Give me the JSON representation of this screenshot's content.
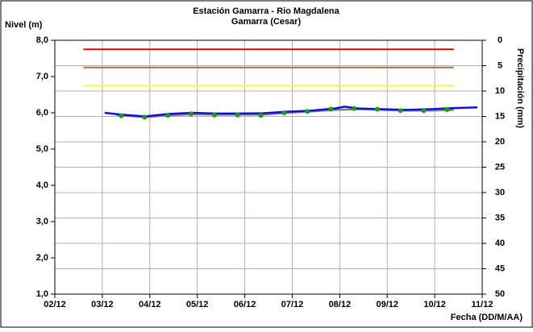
{
  "chart_data": {
    "type": "line",
    "title": "Estación Gamarra - Rio Magdalena",
    "subtitle": "Gamarra (Cesar)",
    "ylabel": "Nivel (m)",
    "y2label": "Precipitación (mm)",
    "xlabel": "Fecha (DD/M/AA)",
    "xlim": [
      0,
      9
    ],
    "xticks": [
      {
        "value": 0,
        "label": "02/12"
      },
      {
        "value": 1,
        "label": "03/12"
      },
      {
        "value": 2,
        "label": "04/12"
      },
      {
        "value": 3,
        "label": "05/12"
      },
      {
        "value": 4,
        "label": "06/12"
      },
      {
        "value": 5,
        "label": "07/12"
      },
      {
        "value": 6,
        "label": "08/12"
      },
      {
        "value": 7,
        "label": "09/12"
      },
      {
        "value": 8,
        "label": "10/12"
      },
      {
        "value": 9,
        "label": "11/12"
      }
    ],
    "ylim": [
      1,
      8
    ],
    "yticks": [
      {
        "value": 1,
        "label": "1,0"
      },
      {
        "value": 2,
        "label": "2,0"
      },
      {
        "value": 3,
        "label": "3,0"
      },
      {
        "value": 4,
        "label": "4,0"
      },
      {
        "value": 5,
        "label": "5,0"
      },
      {
        "value": 6,
        "label": "6,0"
      },
      {
        "value": 7,
        "label": "7,0"
      },
      {
        "value": 8,
        "label": "8,0"
      }
    ],
    "y2lim": [
      50,
      0
    ],
    "y2ticks": [
      0,
      5,
      10,
      15,
      20,
      25,
      30,
      35,
      40,
      45,
      50
    ],
    "grid": true,
    "series": [
      {
        "color": "#e00000",
        "style": "line",
        "x": [
          0.6,
          8.4
        ],
        "values": [
          7.75,
          7.75
        ]
      },
      {
        "color": "#b07040",
        "style": "line",
        "x": [
          0.6,
          8.4
        ],
        "values": [
          7.25,
          7.25
        ]
      },
      {
        "color": "#ffff33",
        "style": "line",
        "x": [
          0.6,
          8.4
        ],
        "values": [
          6.75,
          6.75
        ]
      },
      {
        "color": "#808080",
        "style": "line",
        "x": [
          1.3,
          1.9,
          2.4,
          2.9,
          3.4,
          3.9,
          4.4,
          4.9,
          5.4,
          5.9,
          6.4,
          6.9,
          7.4,
          7.9,
          8.4
        ],
        "values": [
          5.94,
          5.88,
          5.93,
          5.96,
          5.95,
          5.95,
          5.95,
          6.0,
          6.04,
          6.08,
          6.1,
          6.08,
          6.06,
          6.06,
          6.08
        ]
      },
      {
        "color": "#1010e0",
        "style": "line",
        "x": [
          1.05,
          1.4,
          1.9,
          2.4,
          2.9,
          3.4,
          3.9,
          4.4,
          4.9,
          5.4,
          5.9,
          6.1,
          6.4,
          6.9,
          7.4,
          7.9,
          8.4,
          8.9
        ],
        "values": [
          6.0,
          5.95,
          5.9,
          5.97,
          6.0,
          5.98,
          5.98,
          5.99,
          6.03,
          6.06,
          6.12,
          6.17,
          6.12,
          6.1,
          6.08,
          6.1,
          6.13,
          6.15
        ]
      },
      {
        "color": "#1a9a1a",
        "style": "dots",
        "x": [
          1.4,
          1.89,
          2.38,
          2.87,
          3.36,
          3.85,
          4.34,
          4.83,
          5.32,
          5.81,
          6.3,
          6.79,
          7.28,
          7.77,
          8.26
        ],
        "values": [
          5.92,
          5.88,
          5.93,
          5.97,
          5.94,
          5.94,
          5.93,
          6.0,
          6.04,
          6.1,
          6.12,
          6.1,
          6.06,
          6.06,
          6.09
        ]
      }
    ]
  }
}
